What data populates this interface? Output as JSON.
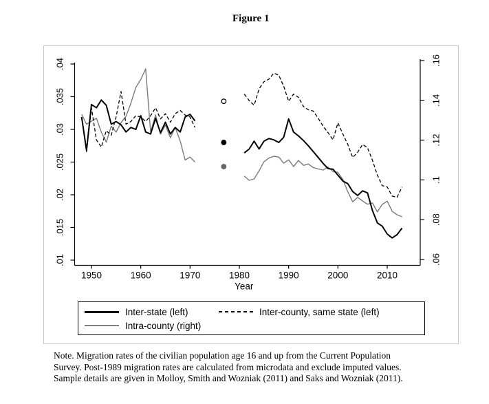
{
  "title": "Figure 1",
  "note": {
    "text": "Note. Migration rates of the civilian population age 16 and up from the Current Population\nSurvey. Post-1989 migration rates are calculated from microdata and exclude imputed values.\nSample details are given in Molloy, Smith and Wozniak (2011) and Saks and Wozniak (2011)."
  },
  "legend": {
    "items": [
      {
        "label": "Inter-state (left)",
        "sample": "solid-thick-black"
      },
      {
        "label": "Inter-county, same state (left)",
        "sample": "dashed-black"
      },
      {
        "label": "Intra-county (right)",
        "sample": "solid-thin-gray"
      }
    ]
  },
  "chart_data": {
    "type": "line",
    "title": "Figure 1",
    "xlabel": "Year",
    "x_ticks": [
      1950,
      1960,
      1970,
      1980,
      1990,
      2000,
      2010
    ],
    "x_range": [
      1946.5,
      2015.5
    ],
    "left_axis": {
      "tick_labels": [
        ".04",
        ".035",
        ".03",
        ".025",
        ".02",
        ".015",
        ".01"
      ],
      "tick_values": [
        0.04,
        0.035,
        0.03,
        0.025,
        0.02,
        0.015,
        0.01
      ],
      "range": [
        0.01,
        0.04
      ],
      "side": "left"
    },
    "right_axis": {
      "tick_labels": [
        ".16",
        ".14",
        ".12",
        ".1",
        ".08",
        ".06"
      ],
      "tick_values": [
        0.16,
        0.14,
        0.12,
        0.1,
        0.08,
        0.06
      ],
      "range": [
        0.06,
        0.16
      ],
      "side": "right"
    },
    "colors": {
      "black": "#000000",
      "gray": "#7a7a7a",
      "gray_dot": "#666666",
      "frame": "#c8c8c8"
    },
    "legend_position": "below",
    "grid": false,
    "series": [
      {
        "name": "Inter-state (left)",
        "axis": "left",
        "line": "solid",
        "width": 2,
        "color": "#000000",
        "segments": [
          {
            "years": [
              1948,
              1949,
              1950,
              1951,
              1952,
              1953,
              1954,
              1955,
              1956,
              1957,
              1958,
              1959,
              1960,
              1961,
              1962,
              1963,
              1964,
              1965,
              1966,
              1967,
              1968,
              1969,
              1970,
              1971
            ],
            "values": [
              0.0319,
              0.0268,
              0.0338,
              0.0333,
              0.0345,
              0.0337,
              0.0308,
              0.0312,
              0.0307,
              0.0296,
              0.0303,
              0.03,
              0.0321,
              0.0296,
              0.0293,
              0.0317,
              0.0295,
              0.0311,
              0.0293,
              0.0303,
              0.0296,
              0.0319,
              0.0323,
              0.0313
            ]
          },
          {
            "years": [
              1981,
              1982,
              1983,
              1984,
              1985,
              1986,
              1987,
              1988,
              1989,
              1990,
              1991,
              1992,
              1993,
              1994,
              1995,
              1996,
              1997,
              1998,
              1999,
              2000,
              2001,
              2002,
              2003,
              2004,
              2005,
              2006,
              2007,
              2008,
              2009,
              2010,
              2011,
              2012,
              2013
            ],
            "values": [
              0.0264,
              0.027,
              0.0282,
              0.027,
              0.0282,
              0.0286,
              0.0284,
              0.028,
              0.0288,
              0.0316,
              0.0296,
              0.029,
              0.0283,
              0.0275,
              0.0266,
              0.0257,
              0.0248,
              0.024,
              0.0239,
              0.023,
              0.0221,
              0.0217,
              0.0205,
              0.0199,
              0.0206,
              0.0203,
              0.0176,
              0.0157,
              0.0152,
              0.014,
              0.0134,
              0.0139,
              0.0149
            ]
          }
        ],
        "isolated_point": {
          "year": 1976,
          "value": 0.028,
          "marker": "filled-circle",
          "fill": "#000000",
          "stroke": "#000000"
        }
      },
      {
        "name": "Inter-county, same state (left)",
        "axis": "left",
        "line": "dashed",
        "width": 1.3,
        "color": "#000000",
        "segments": [
          {
            "years": [
              1948,
              1949,
              1950,
              1951,
              1952,
              1953,
              1954,
              1955,
              1956,
              1957,
              1958,
              1959,
              1960,
              1961,
              1962,
              1963,
              1964,
              1965,
              1966,
              1967,
              1968,
              1969,
              1970,
              1971
            ],
            "values": [
              0.0318,
              0.0266,
              0.0333,
              0.0284,
              0.0273,
              0.0298,
              0.0291,
              0.0319,
              0.0358,
              0.0308,
              0.0312,
              0.0321,
              0.0319,
              0.0312,
              0.0321,
              0.0333,
              0.0316,
              0.0324,
              0.0311,
              0.0324,
              0.0329,
              0.0322,
              0.0319,
              0.0303
            ]
          },
          {
            "years": [
              1981,
              1982,
              1983,
              1984,
              1985,
              1986,
              1987,
              1988,
              1989,
              1990,
              1991,
              1992,
              1993,
              1994,
              1995,
              1996,
              1997,
              1998,
              1999,
              2000,
              2001,
              2002,
              2003,
              2004,
              2005,
              2006,
              2007,
              2008,
              2009,
              2010,
              2011,
              2012,
              2013
            ],
            "values": [
              0.0354,
              0.0344,
              0.0337,
              0.0362,
              0.0373,
              0.0377,
              0.0386,
              0.0383,
              0.0366,
              0.0343,
              0.0354,
              0.0349,
              0.0335,
              0.033,
              0.0328,
              0.0317,
              0.0305,
              0.0295,
              0.0284,
              0.031,
              0.0293,
              0.0277,
              0.0257,
              0.0265,
              0.0277,
              0.0272,
              0.0253,
              0.023,
              0.0214,
              0.0212,
              0.0198,
              0.0196,
              0.0212
            ]
          }
        ],
        "isolated_point": {
          "year": 1976,
          "value": 0.0343,
          "marker": "open-circle",
          "fill": "#ffffff",
          "stroke": "#000000"
        }
      },
      {
        "name": "Intra-county (right)",
        "axis": "right",
        "line": "solid",
        "width": 1.4,
        "color": "#7a7a7a",
        "segments": [
          {
            "years": [
              1948,
              1949,
              1950,
              1951,
              1952,
              1953,
              1954,
              1955,
              1956,
              1957,
              1958,
              1959,
              1960,
              1961,
              1962,
              1963,
              1964,
              1965,
              1966,
              1967,
              1968,
              1969,
              1970,
              1971
            ],
            "values": [
              0.133,
              0.128,
              0.1295,
              0.131,
              0.124,
              0.119,
              0.127,
              0.124,
              0.1288,
              0.132,
              0.1385,
              0.1465,
              0.1505,
              0.1558,
              0.124,
              0.1327,
              0.123,
              0.1275,
              0.1212,
              0.1264,
              0.1195,
              0.11,
              0.1115,
              0.109
            ]
          },
          {
            "years": [
              1981,
              1982,
              1983,
              1984,
              1985,
              1986,
              1987,
              1988,
              1989,
              1990,
              1991,
              1992,
              1993,
              1994,
              1995,
              1996,
              1997,
              1998,
              1999,
              2000,
              2001,
              2002,
              2003,
              2004,
              2005,
              2006,
              2007,
              2008,
              2009,
              2010,
              2011,
              2012,
              2013
            ],
            "values": [
              0.1019,
              0.0998,
              0.1005,
              0.1046,
              0.1091,
              0.111,
              0.1119,
              0.1115,
              0.1084,
              0.1101,
              0.1067,
              0.1098,
              0.1073,
              0.108,
              0.1062,
              0.1055,
              0.105,
              0.1065,
              0.1042,
              0.1038,
              0.1002,
              0.094,
              0.089,
              0.0912,
              0.0894,
              0.0878,
              0.0884,
              0.0839,
              0.0877,
              0.0893,
              0.0842,
              0.0825,
              0.0815
            ]
          }
        ],
        "isolated_point": {
          "year": 1976,
          "value": 0.1067,
          "marker": "filled-circle",
          "fill": "#666666",
          "stroke": "#666666"
        }
      }
    ]
  }
}
